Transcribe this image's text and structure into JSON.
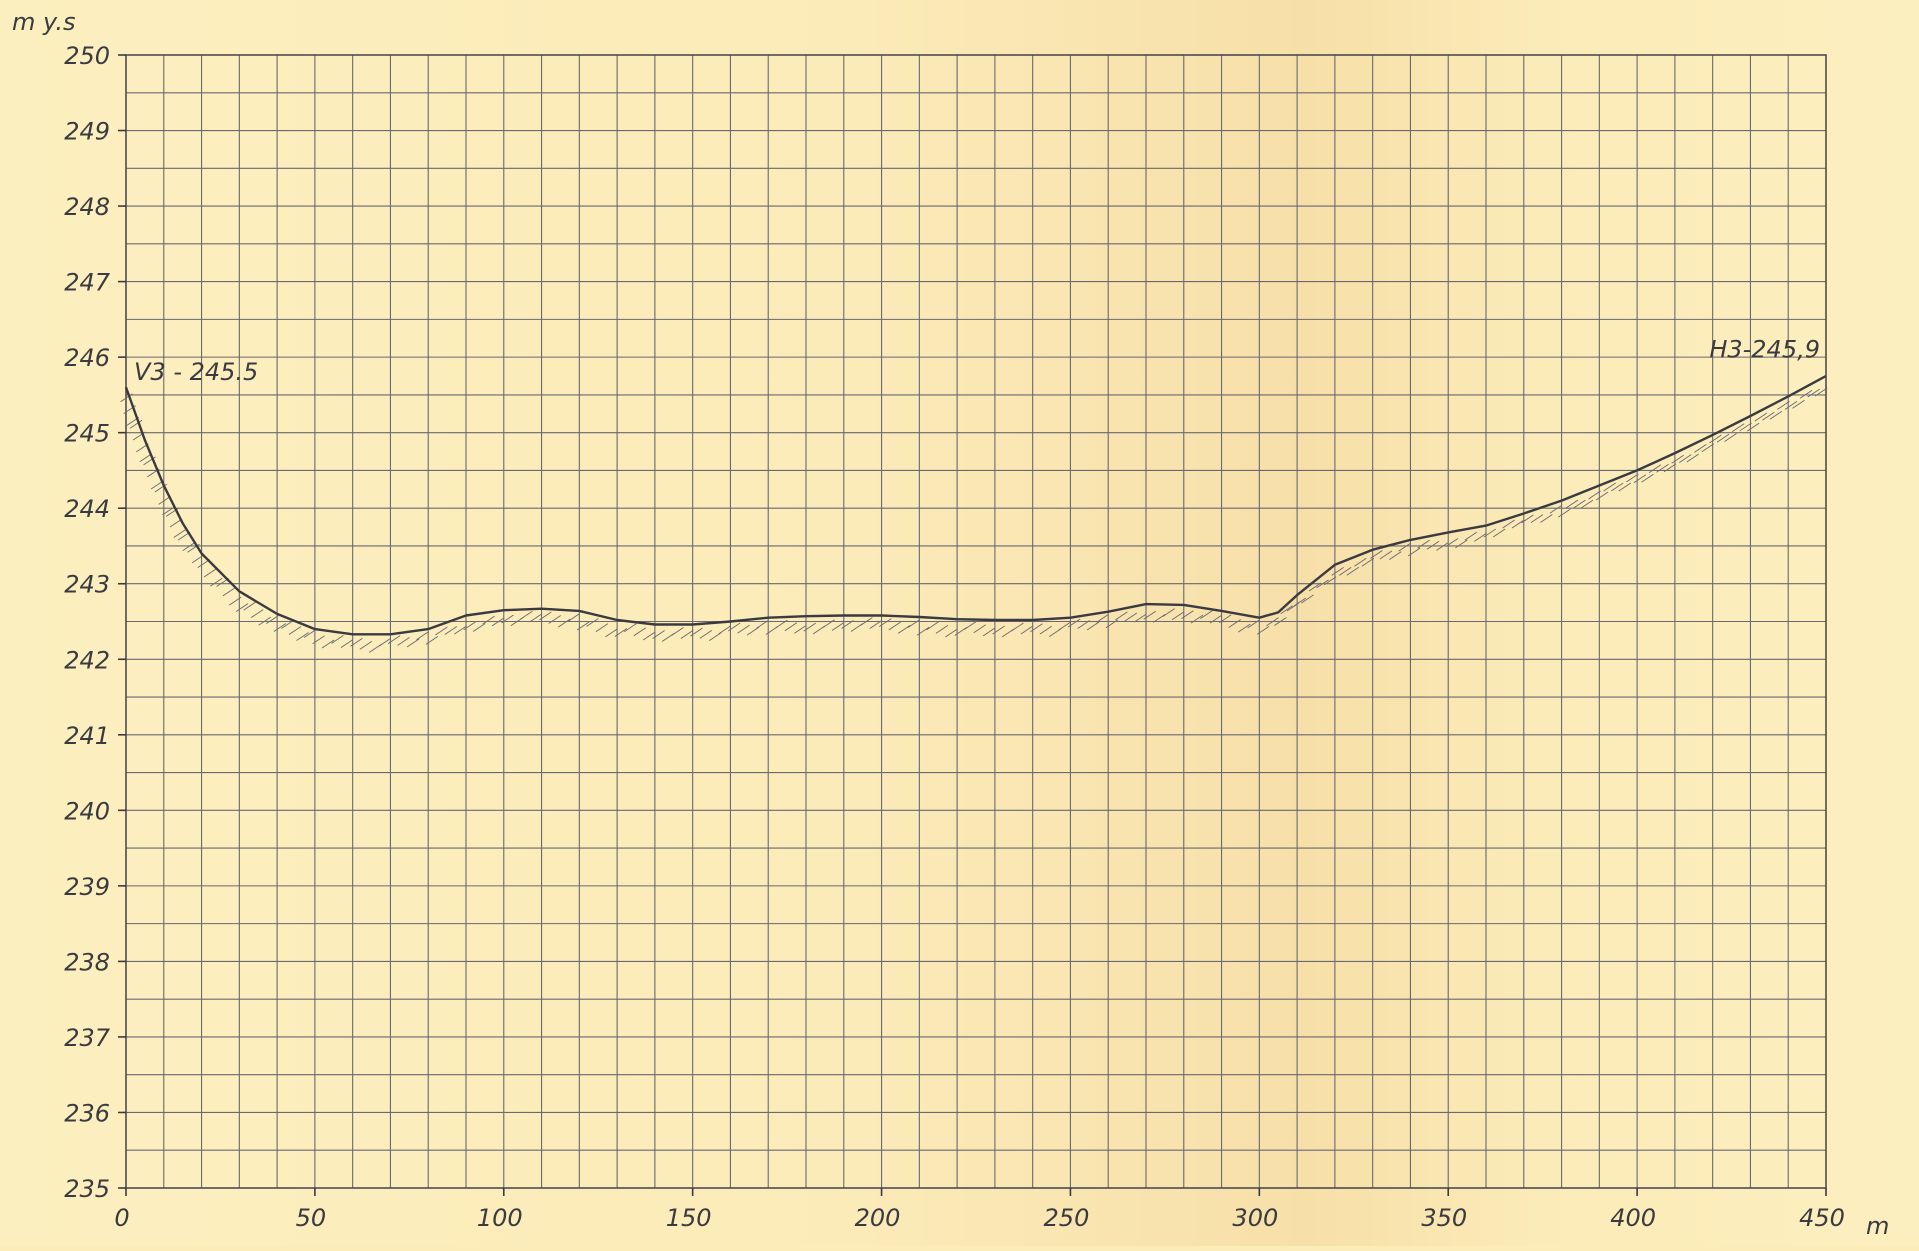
{
  "chart_data": {
    "type": "line",
    "title": "",
    "ylabel": "m y.s",
    "xlabel": "m",
    "xlim": [
      0,
      450
    ],
    "ylim": [
      235,
      250
    ],
    "grid": true,
    "x_ticks": [
      "0",
      "50",
      "100",
      "150",
      "200",
      "250",
      "300",
      "350",
      "400",
      "450"
    ],
    "y_ticks": [
      "250",
      "249",
      "248",
      "247",
      "246",
      "245",
      "244",
      "243",
      "242",
      "241",
      "240",
      "239",
      "238",
      "237",
      "236",
      "235"
    ],
    "series": [
      {
        "color": "#3a3a40",
        "points": [
          [
            0,
            245.6
          ],
          [
            5,
            244.9
          ],
          [
            10,
            244.3
          ],
          [
            15,
            243.8
          ],
          [
            20,
            243.4
          ],
          [
            30,
            242.9
          ],
          [
            40,
            242.6
          ],
          [
            50,
            242.4
          ],
          [
            60,
            242.33
          ],
          [
            70,
            242.33
          ],
          [
            80,
            242.4
          ],
          [
            90,
            242.58
          ],
          [
            100,
            242.65
          ],
          [
            110,
            242.67
          ],
          [
            120,
            242.64
          ],
          [
            130,
            242.52
          ],
          [
            140,
            242.46
          ],
          [
            150,
            242.46
          ],
          [
            160,
            242.5
          ],
          [
            170,
            242.55
          ],
          [
            180,
            242.57
          ],
          [
            190,
            242.58
          ],
          [
            200,
            242.58
          ],
          [
            210,
            242.56
          ],
          [
            220,
            242.53
          ],
          [
            230,
            242.52
          ],
          [
            240,
            242.52
          ],
          [
            250,
            242.55
          ],
          [
            260,
            242.63
          ],
          [
            270,
            242.73
          ],
          [
            280,
            242.72
          ],
          [
            290,
            242.64
          ],
          [
            300,
            242.55
          ],
          [
            305,
            242.62
          ],
          [
            310,
            242.85
          ],
          [
            320,
            243.25
          ],
          [
            330,
            243.45
          ],
          [
            340,
            243.58
          ],
          [
            350,
            243.68
          ],
          [
            360,
            243.77
          ],
          [
            370,
            243.93
          ],
          [
            380,
            244.1
          ],
          [
            390,
            244.3
          ],
          [
            400,
            244.5
          ],
          [
            410,
            244.73
          ],
          [
            420,
            244.97
          ],
          [
            430,
            245.22
          ],
          [
            440,
            245.48
          ],
          [
            450,
            245.75
          ]
        ]
      }
    ],
    "annotations": [
      {
        "text": "V3 - 245.5",
        "x": 0,
        "y": 245.5
      },
      {
        "text": "H3-245,9",
        "x": 450,
        "y": 245.9
      }
    ]
  }
}
